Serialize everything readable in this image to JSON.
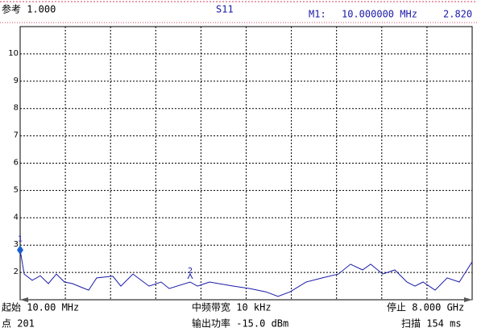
{
  "header": {
    "reference": "参考 1.000",
    "trace": "S11",
    "marker_name": "M1:",
    "marker_freq": "10.000000 MHz",
    "marker_value": "2.820"
  },
  "footer": {
    "start": "起始 10.00 MHz",
    "if_bandwidth": "中频带宽 10 kHz",
    "stop": "停止 8.000 GHz",
    "points": "点 201",
    "power": "输出功率 -15.0 dBm",
    "sweep": "扫描 154 ms"
  },
  "chart_data": {
    "type": "line",
    "color": "#1a1aa8",
    "grid": true,
    "xlim": [
      10,
      8000
    ],
    "ylim": [
      1,
      11
    ],
    "yticks": [
      2,
      3,
      4,
      5,
      6,
      7,
      8,
      9,
      10
    ],
    "x": [
      10,
      81,
      224,
      366,
      508,
      651,
      793,
      936,
      1078,
      1221,
      1363,
      1648,
      1790,
      2004,
      2289,
      2502,
      2645,
      3015,
      3143,
      3357,
      3784,
      4069,
      4354,
      4567,
      4781,
      5066,
      5351,
      5636,
      5850,
      6063,
      6205,
      6419,
      6633,
      6846,
      6989,
      7131,
      7345,
      7558,
      7772,
      8000
    ],
    "values": [
      2.82,
      1.94,
      1.71,
      1.88,
      1.59,
      1.94,
      1.65,
      1.59,
      1.47,
      1.35,
      1.8,
      1.86,
      1.5,
      1.94,
      1.5,
      1.65,
      1.41,
      1.65,
      1.5,
      1.65,
      1.5,
      1.41,
      1.29,
      1.12,
      1.29,
      1.65,
      1.8,
      1.94,
      2.3,
      2.09,
      2.3,
      1.94,
      2.09,
      1.65,
      1.5,
      1.65,
      1.35,
      1.8,
      1.65,
      2.39
    ],
    "markers": [
      {
        "label": "1",
        "x": 10,
        "y": 2.82
      },
      {
        "label": "2",
        "x": 3015,
        "y": 1.65
      }
    ]
  }
}
